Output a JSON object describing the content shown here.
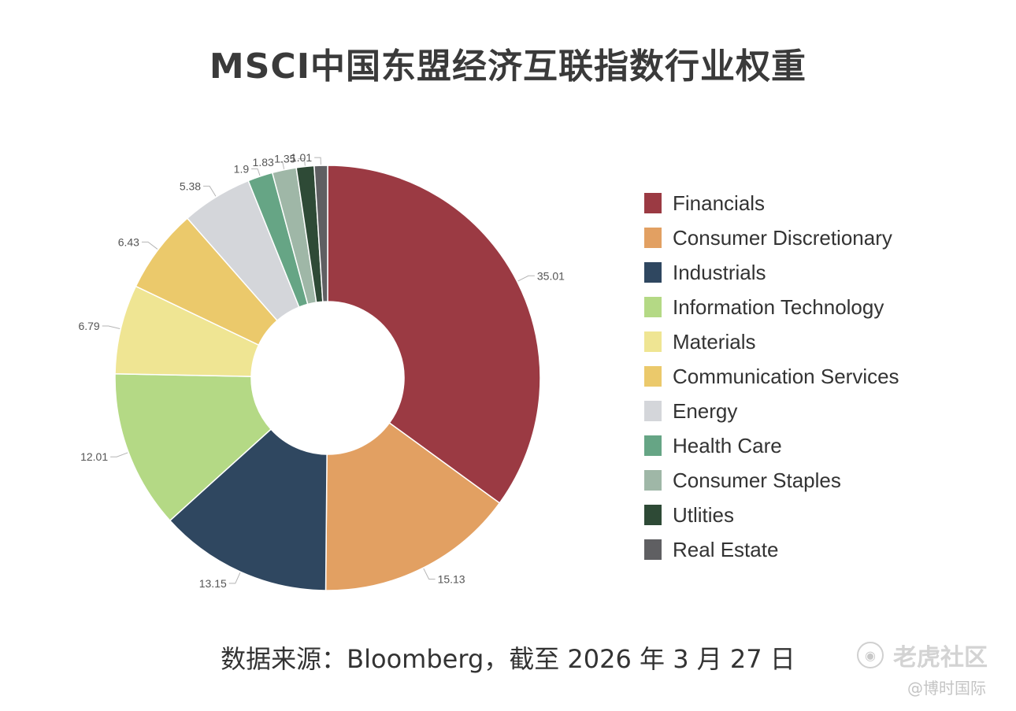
{
  "chart_data": {
    "type": "pie",
    "variant": "donut",
    "title": "MSCI中国东盟经济互联指数行业权重",
    "categories": [
      "Financials",
      "Consumer Discretionary",
      "Industrials",
      "Information Technology",
      "Materials",
      "Communication Services",
      "Energy",
      "Health Care",
      "Consumer Staples",
      "Utlities",
      "Real Estate"
    ],
    "values": [
      35.01,
      15.13,
      13.15,
      12.01,
      6.79,
      6.43,
      5.38,
      1.9,
      1.83,
      1.35,
      1.01
    ],
    "data_labels": [
      "35.01",
      "15.13",
      "13.15",
      "12.01",
      "6.79",
      "6.43",
      "5.38",
      "1.9",
      "1.83",
      "1.35",
      "1.01"
    ],
    "colors": [
      "#9b3a43",
      "#e2a062",
      "#2f4760",
      "#b4d985",
      "#efe593",
      "#ebc96b",
      "#d4d6da",
      "#66a585",
      "#9fb7a7",
      "#2e4a36",
      "#5f5f62"
    ],
    "legend_position": "right"
  },
  "source_text": "数据来源：Bloomberg，截至 2026 年 3 月 27 日",
  "watermark": {
    "logo_icon": "tiger-logo-icon",
    "logo_glyph": "◉",
    "brand": "老虎社区",
    "handle": "@博时国际"
  }
}
